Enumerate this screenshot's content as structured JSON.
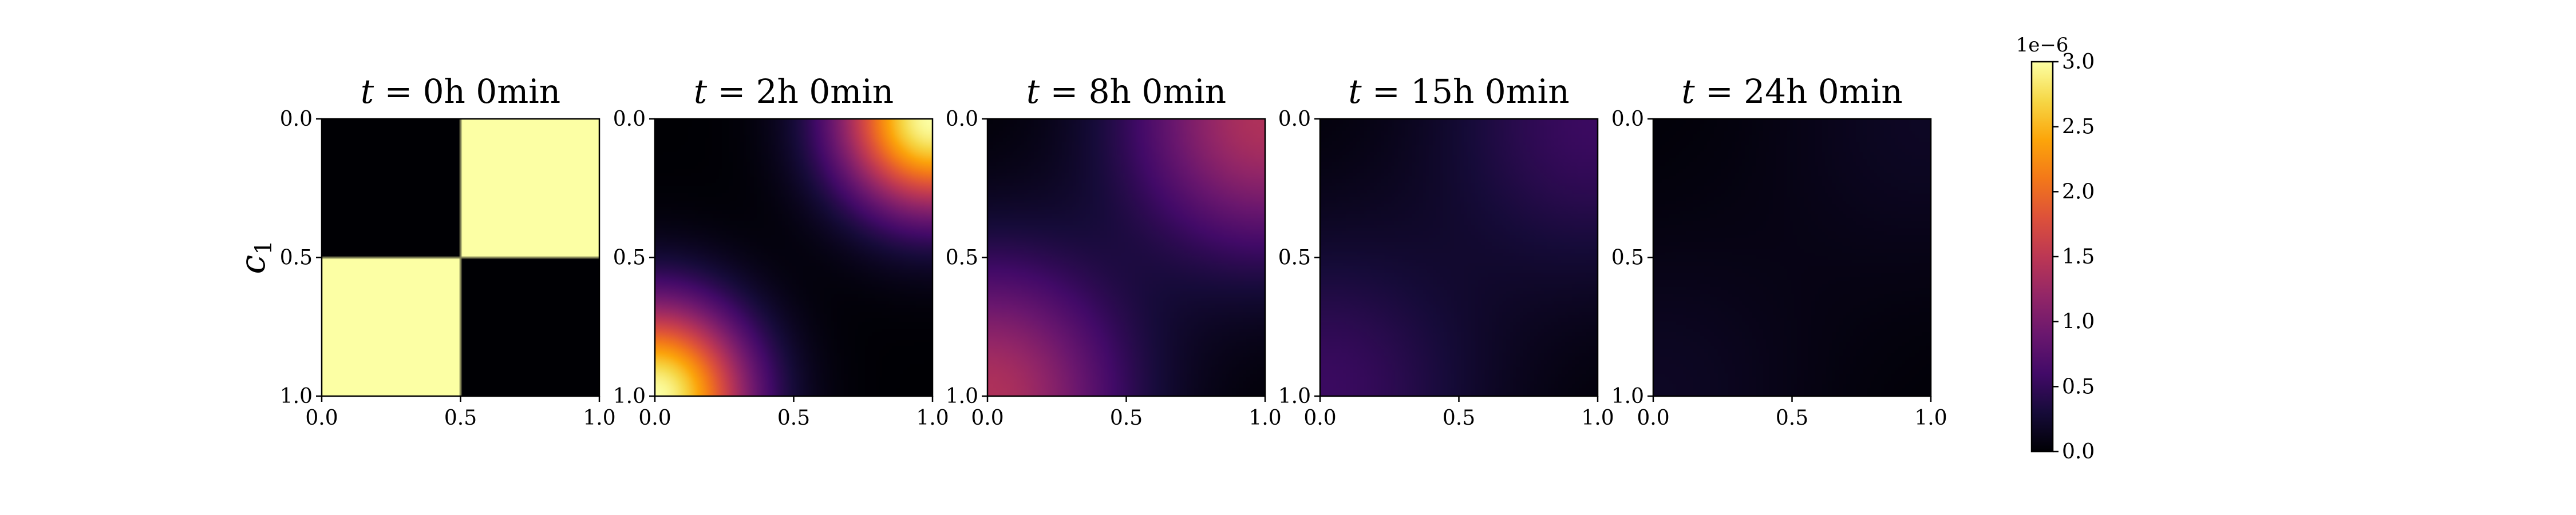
{
  "chart_data": {
    "type": "heatmap",
    "panels": [
      {
        "title": "t = 0h 0min",
        "title_parts": {
          "t": "t",
          "eq": "=",
          "rest": "0h 0min"
        },
        "pattern": "step",
        "amplitude": 3.0
      },
      {
        "title": "t = 2h 0min",
        "title_parts": {
          "t": "t",
          "eq": "=",
          "rest": "2h 0min"
        },
        "pattern": "smooth",
        "amplitude": 3.0
      },
      {
        "title": "t = 8h 0min",
        "title_parts": {
          "t": "t",
          "eq": "=",
          "rest": "8h 0min"
        },
        "pattern": "smooth",
        "amplitude": 1.4
      },
      {
        "title": "t = 15h 0min",
        "title_parts": {
          "t": "t",
          "eq": "=",
          "rest": "15h 0min"
        },
        "pattern": "smooth",
        "amplitude": 0.55
      },
      {
        "title": "t = 24h 0min",
        "title_parts": {
          "t": "t",
          "eq": "=",
          "rest": "24h 0min"
        },
        "pattern": "smooth",
        "amplitude": 0.18
      }
    ],
    "x_ticks": [
      "0.0",
      "0.5",
      "1.0"
    ],
    "y_ticks": [
      "0.0",
      "0.5",
      "1.0"
    ],
    "xlim": [
      0.0,
      1.0
    ],
    "ylim": [
      0.0,
      1.0
    ],
    "ylabel": "c",
    "ylabel_subscript": "1",
    "colorbar": {
      "colormap": "inferno",
      "range": [
        0.0,
        3.0
      ],
      "ticks": [
        "0.0",
        "0.5",
        "1.0",
        "1.5",
        "2.0",
        "2.5",
        "3.0"
      ],
      "exponent_label": "1e−6"
    }
  }
}
